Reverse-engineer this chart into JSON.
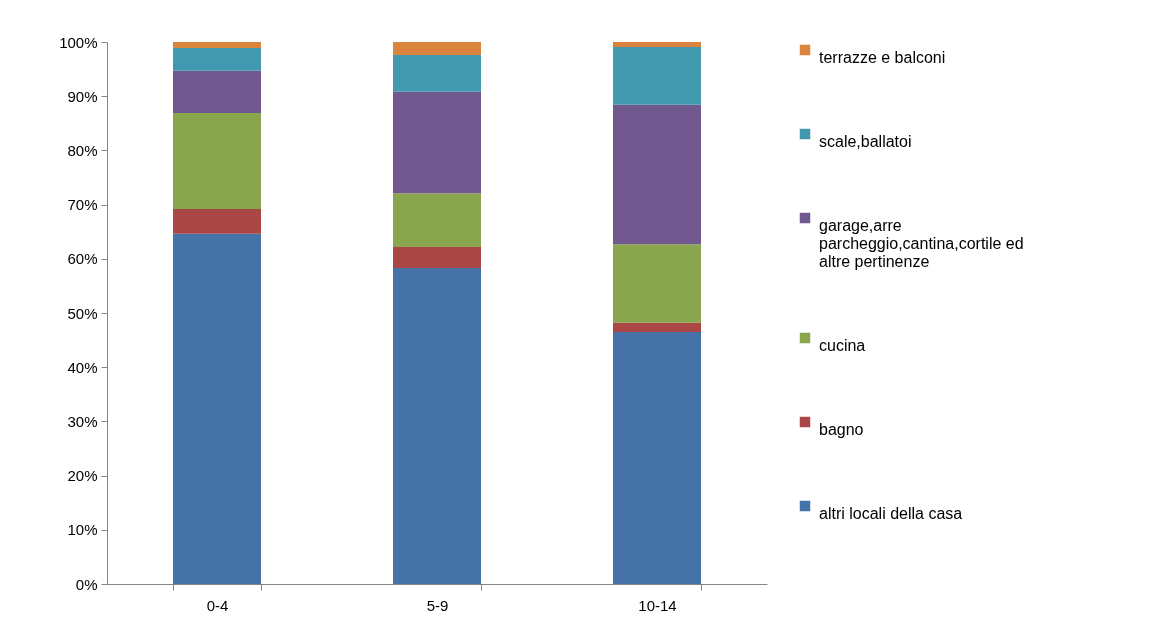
{
  "chart_data": {
    "type": "bar",
    "stacked": true,
    "categories": [
      "0-4",
      "5-9",
      "10-14"
    ],
    "series": [
      {
        "name": "altri locali della casa",
        "color": "#4572a7",
        "values": [
          64.6,
          58.3,
          46.5
        ]
      },
      {
        "name": "bagno",
        "color": "#aa4643",
        "values": [
          4.6,
          3.9,
          1.7
        ]
      },
      {
        "name": "cucina",
        "color": "#89a54e",
        "values": [
          17.7,
          9.9,
          14.5
        ]
      },
      {
        "name": "garage,arre parcheggio,cantina,cortile ed altre pertinenze",
        "color": "#71588f",
        "values": [
          7.8,
          18.7,
          25.7
        ]
      },
      {
        "name": "scale,ballatoi",
        "color": "#4198af",
        "values": [
          4.2,
          6.8,
          10.7
        ]
      },
      {
        "name": "terrazze e balconi",
        "color": "#db843d",
        "values": [
          1.1,
          2.4,
          0.9
        ]
      }
    ],
    "ylim": [
      0,
      100
    ],
    "yticks": [
      {
        "value": 0,
        "label": "0%"
      },
      {
        "value": 10,
        "label": "10%"
      },
      {
        "value": 20,
        "label": "20%"
      },
      {
        "value": 30,
        "label": "30%"
      },
      {
        "value": 40,
        "label": "40%"
      },
      {
        "value": 50,
        "label": "50%"
      },
      {
        "value": 60,
        "label": "60%"
      },
      {
        "value": 70,
        "label": "70%"
      },
      {
        "value": 80,
        "label": "80%"
      },
      {
        "value": 90,
        "label": "90%"
      },
      {
        "value": 100,
        "label": "100%"
      }
    ],
    "grid": false,
    "legend": "right"
  }
}
